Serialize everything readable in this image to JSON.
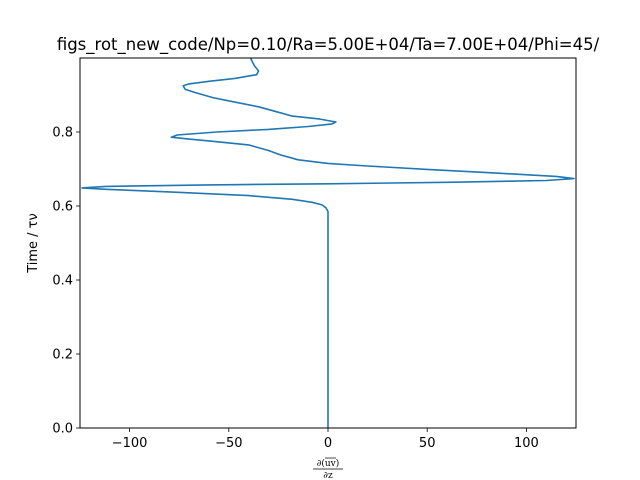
{
  "chart_data": {
    "type": "line",
    "title": "figs_rot_new_code/Np=0.10/Ra=5.00E+04/Ta=7.00E+04/Phi=45/",
    "xlabel": {
      "numerator": "∂(uv)",
      "numerator_overbar": "uv",
      "denominator": "∂z"
    },
    "ylabel": "Time / τν",
    "xlim": [
      -125,
      125
    ],
    "ylim": [
      0,
      1.0
    ],
    "xticks": [
      {
        "value": -100,
        "label": "−100"
      },
      {
        "value": -50,
        "label": "−50"
      },
      {
        "value": 0,
        "label": "0"
      },
      {
        "value": 50,
        "label": "50"
      },
      {
        "value": 100,
        "label": "100"
      }
    ],
    "yticks": [
      {
        "value": 0.0,
        "label": "0.0"
      },
      {
        "value": 0.2,
        "label": "0.2"
      },
      {
        "value": 0.4,
        "label": "0.4"
      },
      {
        "value": 0.6,
        "label": "0.6"
      },
      {
        "value": 0.8,
        "label": "0.8"
      }
    ],
    "grid": false,
    "color": "#1f77b4",
    "series": [
      {
        "points": [
          [
            0,
            0.0
          ],
          [
            0,
            0.2
          ],
          [
            0,
            0.4
          ],
          [
            0,
            0.55
          ],
          [
            0,
            0.585
          ],
          [
            -1,
            0.595
          ],
          [
            -3,
            0.603
          ],
          [
            -8,
            0.61
          ],
          [
            -18,
            0.618
          ],
          [
            -40,
            0.628
          ],
          [
            -80,
            0.638
          ],
          [
            -112,
            0.645
          ],
          [
            -124,
            0.649
          ],
          [
            -112,
            0.653
          ],
          [
            -60,
            0.657
          ],
          [
            0,
            0.66
          ],
          [
            60,
            0.664
          ],
          [
            110,
            0.669
          ],
          [
            124,
            0.674
          ],
          [
            115,
            0.68
          ],
          [
            85,
            0.689
          ],
          [
            50,
            0.699
          ],
          [
            20,
            0.708
          ],
          [
            0,
            0.715
          ],
          [
            -15,
            0.725
          ],
          [
            -24,
            0.738
          ],
          [
            -30,
            0.75
          ],
          [
            -40,
            0.765
          ],
          [
            -58,
            0.775
          ],
          [
            -72,
            0.782
          ],
          [
            -79,
            0.786
          ],
          [
            -76,
            0.792
          ],
          [
            -56,
            0.8
          ],
          [
            -30,
            0.807
          ],
          [
            -10,
            0.815
          ],
          [
            2,
            0.822
          ],
          [
            4,
            0.827
          ],
          [
            -4,
            0.835
          ],
          [
            -18,
            0.843
          ],
          [
            -26,
            0.855
          ],
          [
            -35,
            0.868
          ],
          [
            -48,
            0.882
          ],
          [
            -58,
            0.893
          ],
          [
            -66,
            0.905
          ],
          [
            -72,
            0.915
          ],
          [
            -73,
            0.925
          ],
          [
            -70,
            0.93
          ],
          [
            -60,
            0.937
          ],
          [
            -47,
            0.945
          ],
          [
            -36,
            0.955
          ],
          [
            -35,
            0.965
          ],
          [
            -37,
            0.978
          ],
          [
            -38,
            0.988
          ],
          [
            -39,
            1.0
          ]
        ]
      }
    ]
  }
}
